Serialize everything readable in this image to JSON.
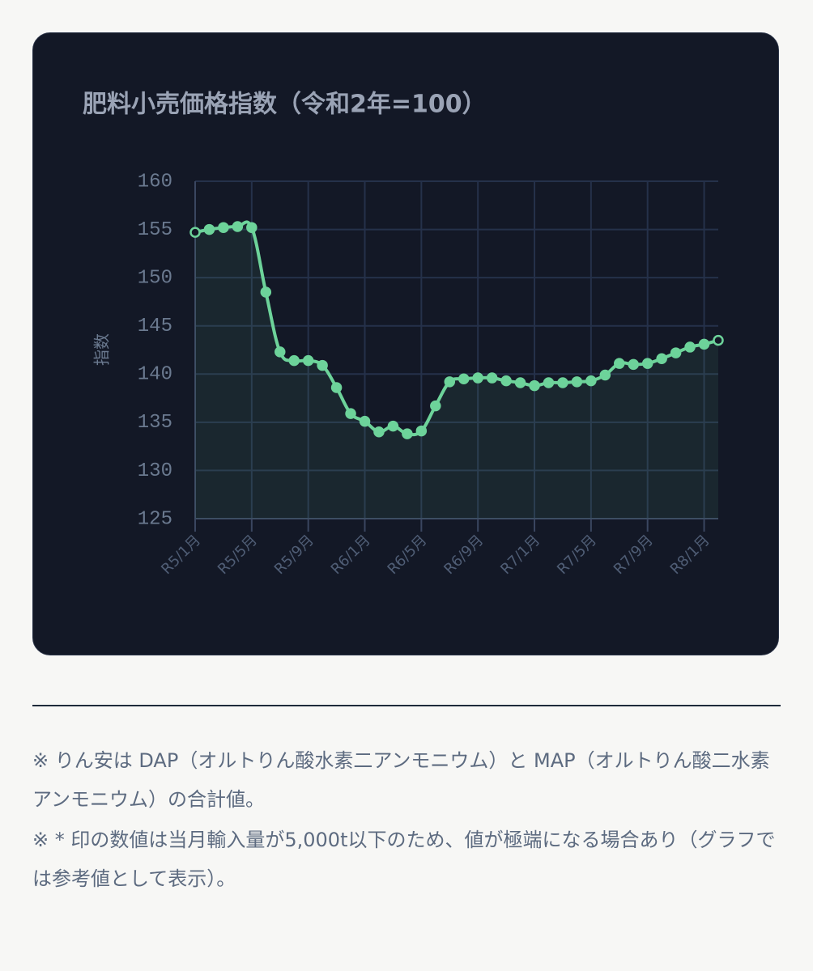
{
  "chart_data": {
    "type": "line",
    "title": "肥料小売価格指数（令和2年=100）",
    "y_label": "指数",
    "categories": [
      "R5/1月",
      null,
      null,
      null,
      "R5/5月",
      null,
      null,
      null,
      "R5/9月",
      null,
      null,
      null,
      "R6/1月",
      null,
      null,
      null,
      "R6/5月",
      null,
      null,
      null,
      "R6/9月",
      null,
      null,
      null,
      "R7/1月",
      null,
      null,
      null,
      "R7/5月",
      null,
      null,
      null,
      "R7/9月",
      null,
      null,
      null,
      "R8/1月",
      null
    ],
    "series": [
      {
        "color": "#6dd39a",
        "values": [
          154.7,
          155.0,
          155.2,
          155.3,
          155.2,
          148.5,
          142.3,
          141.4,
          141.4,
          140.9,
          138.6,
          135.9,
          135.1,
          134.0,
          134.6,
          133.8,
          134.1,
          136.7,
          139.2,
          139.5,
          139.6,
          139.6,
          139.3,
          139.1,
          138.8,
          139.1,
          139.1,
          139.2,
          139.3,
          139.9,
          141.1,
          141.0,
          141.1,
          141.6,
          142.2,
          142.8,
          143.1,
          143.5
        ]
      }
    ],
    "ylim": [
      125,
      160
    ],
    "yticks": [
      125,
      130,
      135,
      140,
      145,
      150,
      155,
      160
    ],
    "grid": true
  },
  "notes": [
    "※ りん安は DAP（オルトりん酸水素二アンモニウム）と MAP（オルトりん酸二水素アンモニウム）の合計値。",
    "※ * 印の数値は当月輸入量が5,000t以下のため、値が極端になる場合あり（グラフでは参考値として表示）。"
  ]
}
